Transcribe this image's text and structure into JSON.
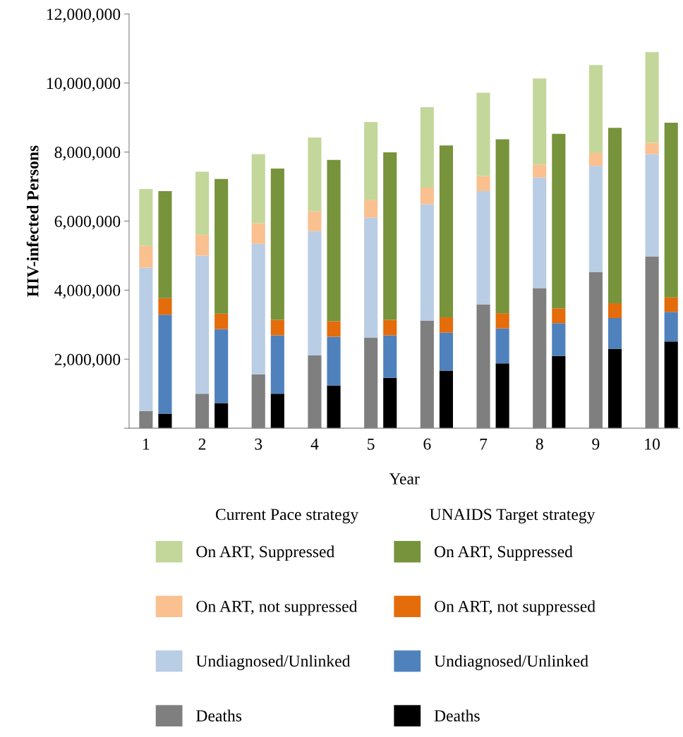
{
  "chart_data": {
    "type": "bar",
    "stacked": true,
    "xlabel": "Year",
    "ylabel": "HIV-infected Persons",
    "categories": [
      "1",
      null,
      "2",
      null,
      "3",
      null,
      "4",
      null,
      "5",
      null,
      "6",
      null,
      "7",
      null,
      "8",
      null,
      "9",
      null,
      "10",
      null
    ],
    "ylim": [
      0,
      12000000
    ],
    "yticks": [
      {
        "value": 0,
        "label": null
      },
      {
        "value": 2000000,
        "label": "2,000,000"
      },
      {
        "value": 4000000,
        "label": "4,000,000"
      },
      {
        "value": 6000000,
        "label": "6,000,000"
      },
      {
        "value": 8000000,
        "label": "8,000,000"
      },
      {
        "value": 10000000,
        "label": "10,000,000"
      },
      {
        "value": 12000000,
        "label": "12,000,000"
      }
    ],
    "grid": false,
    "legend": "bottom",
    "annotations": [
      "Current Pace strategy",
      "UNAIDS Target strategy"
    ],
    "series": [
      {
        "name": "Deaths",
        "color": "#7f7f7f",
        "values": [
          500000,
          null,
          1000000,
          null,
          1560000,
          null,
          2110000,
          null,
          2630000,
          null,
          3120000,
          null,
          3590000,
          null,
          4060000,
          null,
          4520000,
          null,
          4980000,
          null
        ]
      },
      {
        "name": "Undiagnosed/Unlinked",
        "color": "#b9cde5",
        "values": [
          4150000,
          null,
          4000000,
          null,
          3780000,
          null,
          3600000,
          null,
          3470000,
          null,
          3370000,
          null,
          3280000,
          null,
          3200000,
          null,
          3080000,
          null,
          2960000,
          null
        ]
      },
      {
        "name": "On ART, not suppressed",
        "color": "#fac090",
        "values": [
          630000,
          null,
          600000,
          null,
          600000,
          null,
          570000,
          null,
          520000,
          null,
          480000,
          null,
          440000,
          null,
          380000,
          null,
          370000,
          null,
          330000,
          null
        ]
      },
      {
        "name": "On ART, Suppressed",
        "color": "#c4d79b",
        "values": [
          1650000,
          null,
          1830000,
          null,
          2000000,
          null,
          2140000,
          null,
          2250000,
          null,
          2330000,
          null,
          2410000,
          null,
          2490000,
          null,
          2550000,
          null,
          2630000,
          null
        ]
      },
      {
        "name": "Deaths",
        "color": "#000000",
        "values": [
          null,
          420000,
          null,
          730000,
          null,
          1000000,
          null,
          1240000,
          null,
          1460000,
          null,
          1670000,
          null,
          1880000,
          null,
          2090000,
          null,
          2300000,
          null,
          2510000
        ]
      },
      {
        "name": "Undiagnosed/Unlinked",
        "color": "#4f81bd",
        "values": [
          null,
          2870000,
          null,
          2140000,
          null,
          1690000,
          null,
          1410000,
          null,
          1230000,
          null,
          1100000,
          null,
          1010000,
          null,
          950000,
          null,
          890000,
          null,
          860000
        ]
      },
      {
        "name": "On ART, not suppressed",
        "color": "#e46c0a",
        "values": [
          null,
          480000,
          null,
          450000,
          null,
          450000,
          null,
          450000,
          null,
          450000,
          null,
          440000,
          null,
          440000,
          null,
          430000,
          null,
          430000,
          null,
          420000
        ]
      },
      {
        "name": "On ART, Suppressed",
        "color": "#77933c",
        "values": [
          null,
          3100000,
          null,
          3900000,
          null,
          4380000,
          null,
          4670000,
          null,
          4850000,
          null,
          4980000,
          null,
          5040000,
          null,
          5060000,
          null,
          5080000,
          null,
          5060000
        ]
      }
    ]
  }
}
